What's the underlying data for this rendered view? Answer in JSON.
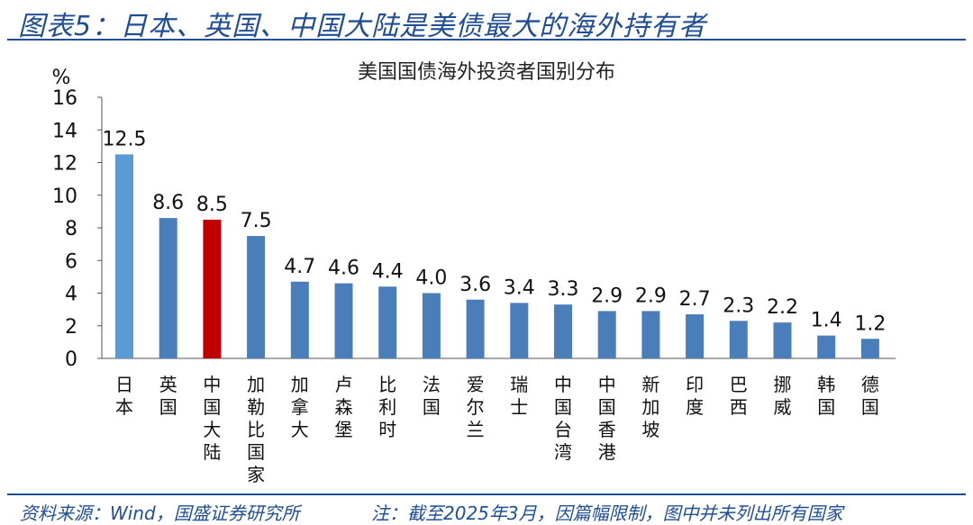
{
  "figure_title": "图表5：日本、英国、中国大陆是美债最大的海外持有者",
  "source": "资料来源：Wind，国盛证券研究所",
  "note": "注：截至2025年3月，因篇幅限制，图中并未列出所有国家",
  "chart_data": {
    "type": "bar",
    "title": "美国国债海外投资者国别分布",
    "ylabel": "%",
    "ylim": [
      0,
      16
    ],
    "yticks": [
      0,
      2,
      4,
      6,
      8,
      10,
      12,
      14,
      16
    ],
    "grid": false,
    "legend": "none",
    "categories": [
      "日本",
      "英国",
      "中国大陆",
      "加勒比国家",
      "加拿大",
      "卢森堡",
      "比利时",
      "法国",
      "爱尔兰",
      "瑞士",
      "中国台湾",
      "中国香港",
      "新加坡",
      "印度",
      "巴西",
      "挪威",
      "韩国",
      "德国"
    ],
    "values": [
      12.5,
      8.6,
      8.5,
      7.5,
      4.7,
      4.6,
      4.4,
      4.0,
      3.6,
      3.4,
      3.3,
      2.9,
      2.9,
      2.7,
      2.3,
      2.2,
      1.4,
      1.2
    ],
    "value_labels": [
      "12.5",
      "8.6",
      "8.5",
      "7.5",
      "4.7",
      "4.6",
      "4.4",
      "4.0",
      "3.6",
      "3.4",
      "3.3",
      "2.9",
      "2.9",
      "2.7",
      "2.3",
      "2.2",
      "1.4",
      "1.2"
    ],
    "bar_colors": [
      "#5b9bd5",
      "#4a7ebb",
      "#c00000",
      "#4a7ebb",
      "#4a7ebb",
      "#4a7ebb",
      "#4a7ebb",
      "#4a7ebb",
      "#4a7ebb",
      "#4a7ebb",
      "#4a7ebb",
      "#4a7ebb",
      "#4a7ebb",
      "#4a7ebb",
      "#4a7ebb",
      "#4a7ebb",
      "#4a7ebb",
      "#4a7ebb"
    ]
  }
}
